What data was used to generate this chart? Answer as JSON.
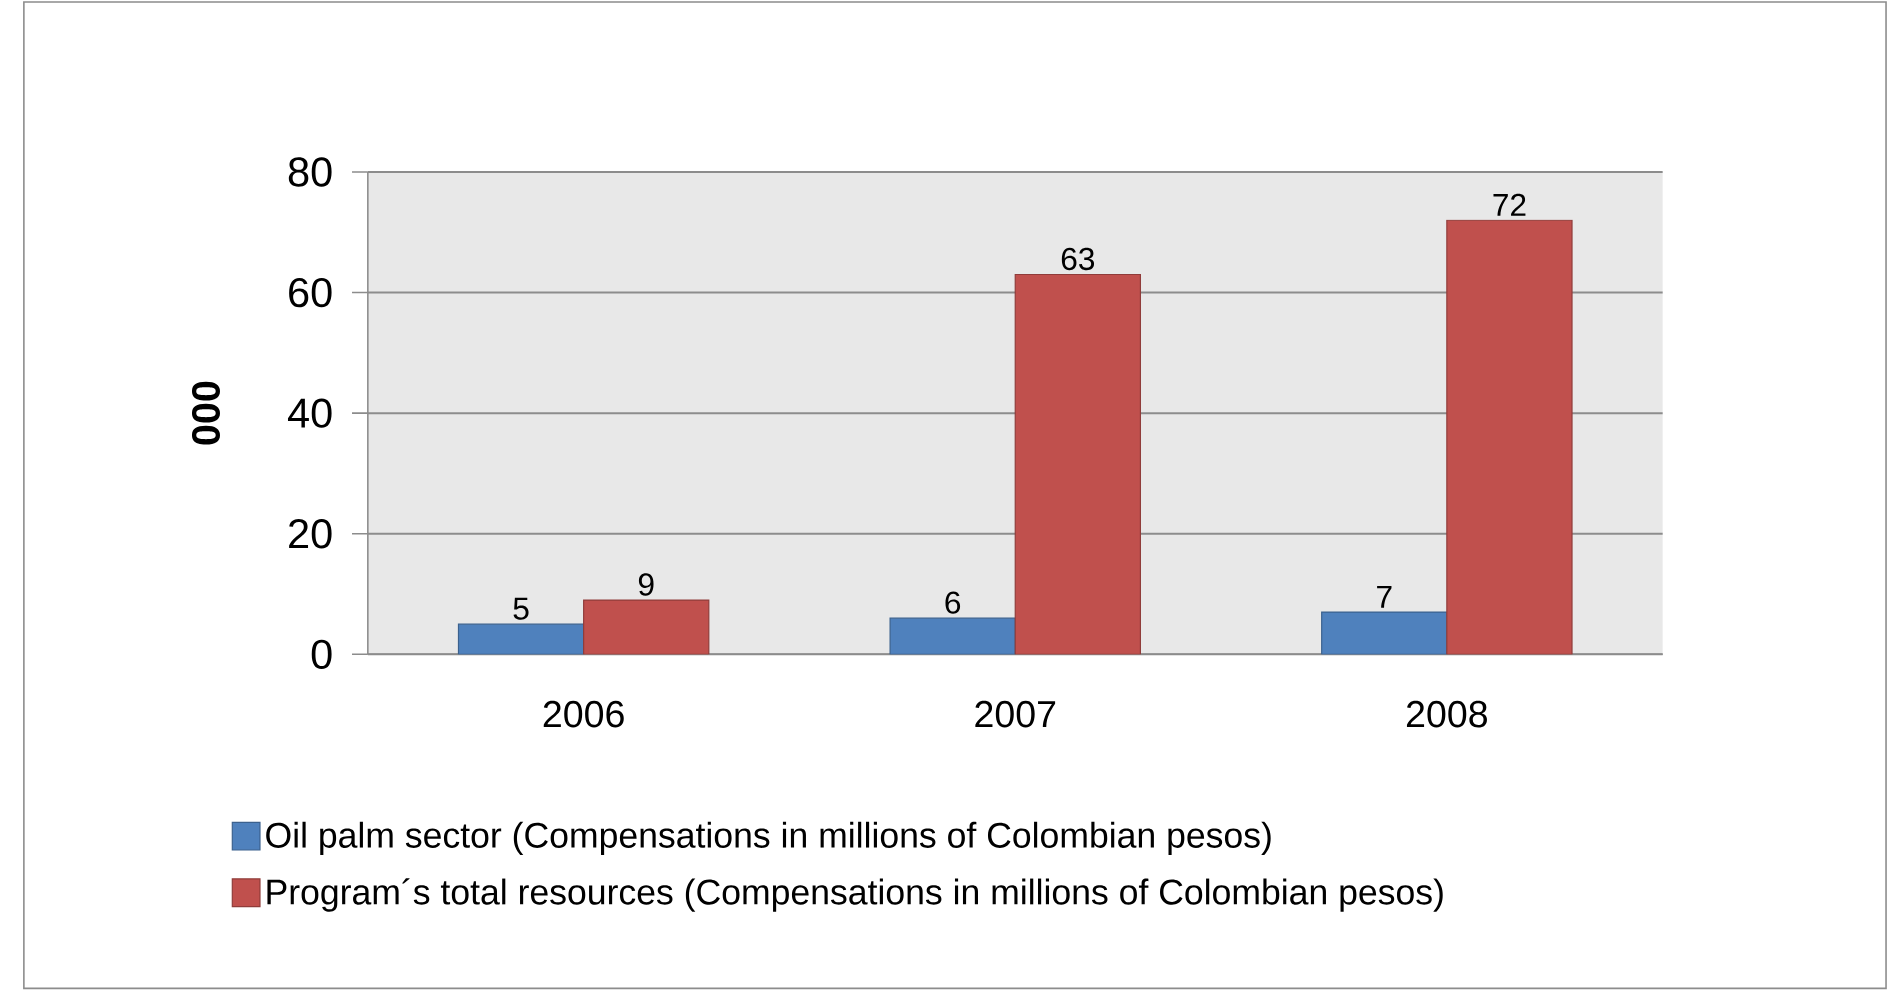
{
  "chart_data": {
    "type": "bar",
    "ylabel": "000",
    "categories": [
      "2006",
      "2007",
      "2008"
    ],
    "series": [
      {
        "name": "Oil palm sector (Compensations in millions of Colombian pesos)",
        "color": "#4f81bd",
        "values": [
          5,
          6,
          7
        ]
      },
      {
        "name": "Program´s total resources (Compensations in millions of Colombian pesos)",
        "color": "#c0504d",
        "values": [
          9,
          63,
          72
        ]
      }
    ],
    "ylim": [
      0,
      80
    ],
    "yticks": [
      0,
      20,
      40,
      60,
      80
    ],
    "grid": "y",
    "legend": "bottom",
    "data_labels": true
  }
}
